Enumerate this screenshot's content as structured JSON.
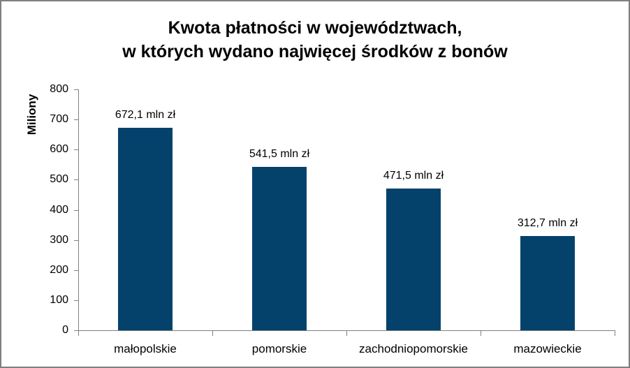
{
  "window": {
    "background_color": "#FFFFFF",
    "border_color": "#808080"
  },
  "chart_data": {
    "type": "bar",
    "title_lines": [
      "Kwota płatności w województwach,",
      "w których wydano najwięcej środków z bonów"
    ],
    "ylabel": "Miliony",
    "xlabel": "",
    "categories": [
      "małopolskie",
      "pomorskie",
      "zachodniopomorskie",
      "mazowieckie"
    ],
    "values": [
      672.1,
      541.5,
      471.5,
      312.7
    ],
    "value_labels": [
      "672,1 mln zł",
      "541,5 mln zł",
      "471,5 mln zł",
      "312,7 mln zł"
    ],
    "ylim": [
      0,
      800
    ],
    "yticks": [
      0,
      100,
      200,
      300,
      400,
      500,
      600,
      700,
      800
    ],
    "grid": false,
    "legend_position": "none",
    "bar_color": "#04426C",
    "axis_color": "#808080",
    "text_color": "#000000"
  }
}
